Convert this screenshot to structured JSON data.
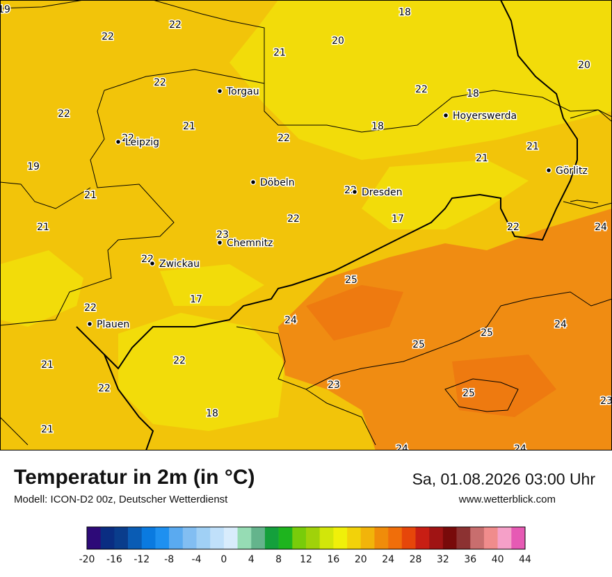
{
  "title": "Temperatur in 2m (in °C)",
  "subtitle": "Modell: ICON-D2 00z, Deutscher Wetterdienst",
  "datetime": "Sa, 01.08.2026 03:00 Uhr",
  "website": "www.wetterblick.com",
  "colors": {
    "zone_16_18": "#f2dc0a",
    "zone_18_20": "#f2c40a",
    "zone_20_22": "#f2b90a",
    "zone_22_24": "#f08c12",
    "zone_24_26": "#ee7a10",
    "border_color": "#000000"
  },
  "cities": [
    {
      "name": "Torgau"
    },
    {
      "name": "Leipzig"
    },
    {
      "name": "Döbeln"
    },
    {
      "name": "Dresden"
    },
    {
      "name": "Hoyerswerda"
    },
    {
      "name": "Görlitz"
    },
    {
      "name": "Chemnitz"
    },
    {
      "name": "Zwickau"
    },
    {
      "name": "Plauen"
    }
  ],
  "temperature_labels": [
    "19",
    "22",
    "22",
    "18",
    "20",
    "21",
    "20",
    "22",
    "18",
    "22",
    "21",
    "22",
    "18",
    "22",
    "21",
    "21",
    "19",
    "21",
    "22",
    "17",
    "21",
    "22",
    "24",
    "23",
    "22",
    "25",
    "24",
    "25",
    "25",
    "24",
    "23",
    "25",
    "23",
    "22",
    "22",
    "21",
    "21",
    "22",
    "18",
    "24",
    "24",
    "22",
    "17",
    "22"
  ],
  "scale": {
    "ticks": [
      "-20",
      "-16",
      "-12",
      "-8",
      "-4",
      "0",
      "4",
      "8",
      "12",
      "16",
      "20",
      "24",
      "28",
      "32",
      "36",
      "40",
      "44"
    ],
    "colors": [
      "#2d0a78",
      "#0a2d82",
      "#0a3d8c",
      "#0a5cb4",
      "#0a7ae0",
      "#1e90f0",
      "#5aaaf0",
      "#82bef2",
      "#a0d0f5",
      "#c0e0fa",
      "#d8ecfc",
      "#96dcb4",
      "#64b48c",
      "#14a03c",
      "#1eb41e",
      "#78cc0a",
      "#a0d20a",
      "#d2e60a",
      "#f0f00a",
      "#f2d20a",
      "#f2b40a",
      "#f08c0a",
      "#f06e0a",
      "#e6460a",
      "#c81e14",
      "#a01414",
      "#780a0a",
      "#8c3232",
      "#c86e6e",
      "#f08c8c",
      "#f5a0c8",
      "#e65ab4"
    ]
  }
}
